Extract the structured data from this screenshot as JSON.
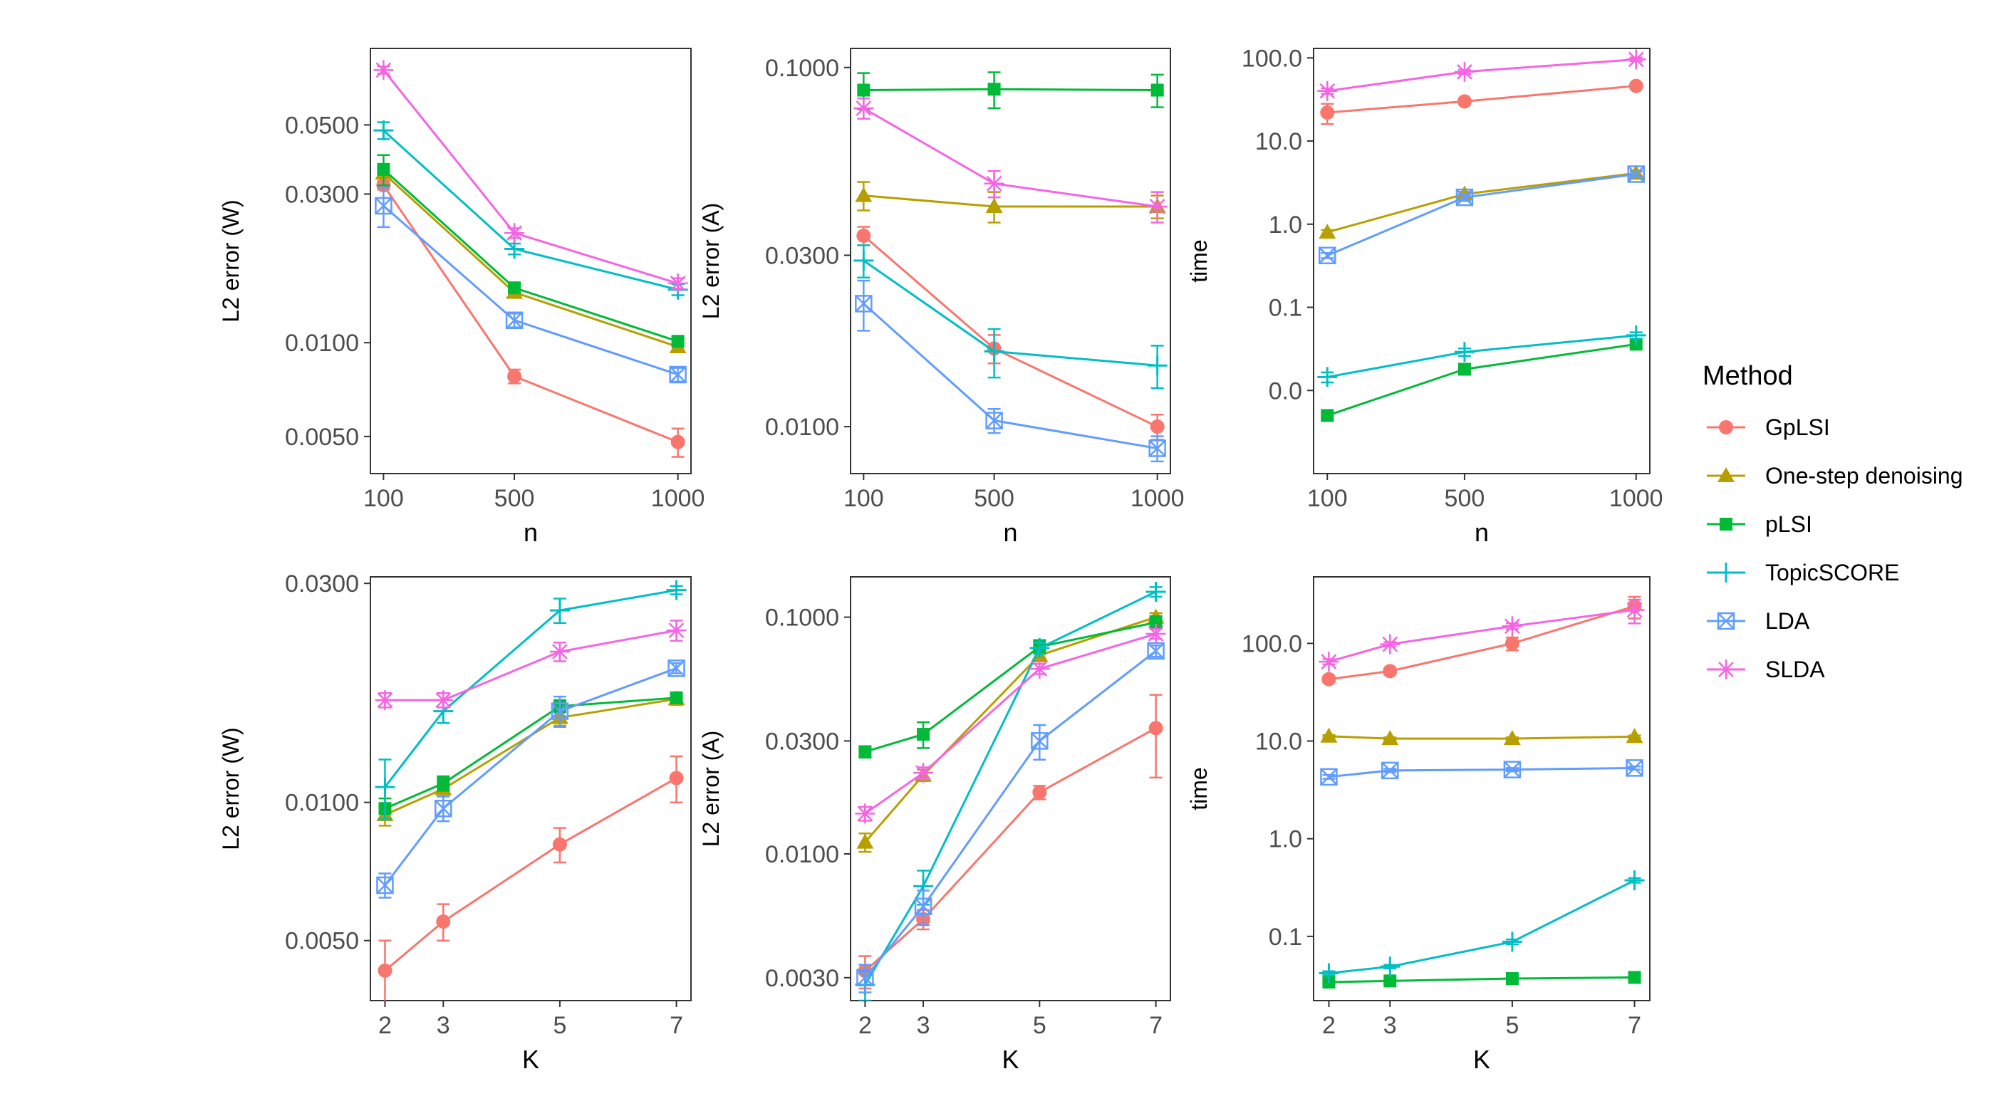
{
  "colors": {
    "GpLSI": "#F8766D",
    "One-step denoising": "#B79F00",
    "pLSI": "#00BA38",
    "TopicSCORE": "#00BFC4",
    "LDA": "#619CFF",
    "SLDA": "#F564E3"
  },
  "legend": {
    "title": "Method",
    "items": [
      {
        "label": "GpLSI",
        "color": "#F8766D",
        "shape": "circle"
      },
      {
        "label": "One-step denoising",
        "color": "#B79F00",
        "shape": "triangle"
      },
      {
        "label": "pLSI",
        "color": "#00BA38",
        "shape": "square"
      },
      {
        "label": "TopicSCORE",
        "color": "#00BFC4",
        "shape": "plus"
      },
      {
        "label": "LDA",
        "color": "#619CFF",
        "shape": "boxcross"
      },
      {
        "label": "SLDA",
        "color": "#F564E3",
        "shape": "star"
      }
    ]
  },
  "chart_data": [
    {
      "type": "line",
      "panel": "top-left",
      "xlabel": "n",
      "ylabel": "L2 error (W)",
      "yscale": "log10",
      "ylim": [
        0.0038,
        0.088
      ],
      "x": [
        100,
        500,
        1000
      ],
      "xlim": [
        60,
        1040
      ],
      "xticks": [
        100,
        500,
        1000
      ],
      "xtick_labels": [
        "100",
        "500",
        "1000"
      ],
      "yticks": [
        0.005,
        0.01,
        0.03,
        0.05
      ],
      "ytick_labels": [
        "0.0050",
        "0.0100",
        "0.0300",
        "0.0500"
      ],
      "series": [
        {
          "name": "GpLSI",
          "values": [
            0.032,
            0.0078,
            0.0048
          ],
          "err": [
            0.001,
            0.0004,
            0.0005
          ]
        },
        {
          "name": "One-step denoising",
          "values": [
            0.035,
            0.0145,
            0.0097
          ],
          "err": [
            0.001,
            0.0005,
            0.0003
          ]
        },
        {
          "name": "pLSI",
          "values": [
            0.036,
            0.015,
            0.0101
          ],
          "err": [
            0.004,
            0.0006,
            0.0003
          ]
        },
        {
          "name": "TopicSCORE",
          "values": [
            0.048,
            0.02,
            0.0148
          ],
          "err": [
            0.003,
            0.0008,
            0.0006
          ]
        },
        {
          "name": "LDA",
          "values": [
            0.0275,
            0.0118,
            0.0079
          ],
          "err": [
            0.004,
            0.0006,
            0.0004
          ]
        },
        {
          "name": "SLDA",
          "values": [
            0.075,
            0.0225,
            0.0155
          ],
          "err": [
            0.002,
            0.0008,
            0.0006
          ]
        }
      ]
    },
    {
      "type": "line",
      "panel": "top-center",
      "xlabel": "n",
      "ylabel": "L2 error (A)",
      "yscale": "log10",
      "ylim": [
        0.0074,
        0.113
      ],
      "x": [
        100,
        500,
        1000
      ],
      "xlim": [
        60,
        1040
      ],
      "xticks": [
        100,
        500,
        1000
      ],
      "xtick_labels": [
        "100",
        "500",
        "1000"
      ],
      "yticks": [
        0.01,
        0.03,
        0.1
      ],
      "ytick_labels": [
        "0.0100",
        "0.0300",
        "0.1000"
      ],
      "series": [
        {
          "name": "GpLSI",
          "values": [
            0.034,
            0.0165,
            0.01
          ],
          "err": [
            0.002,
            0.0015,
            0.0008
          ]
        },
        {
          "name": "One-step denoising",
          "values": [
            0.044,
            0.041,
            0.041
          ],
          "err": [
            0.004,
            0.004,
            0.003
          ]
        },
        {
          "name": "pLSI",
          "values": [
            0.0865,
            0.087,
            0.0865
          ],
          "err": [
            0.01,
            0.01,
            0.009
          ]
        },
        {
          "name": "TopicSCORE",
          "values": [
            0.029,
            0.0162,
            0.0148
          ],
          "err": [
            0.003,
            0.0025,
            0.002
          ]
        },
        {
          "name": "LDA",
          "values": [
            0.022,
            0.0104,
            0.0087
          ],
          "err": [
            0.0035,
            0.0008,
            0.0007
          ]
        },
        {
          "name": "SLDA",
          "values": [
            0.077,
            0.0475,
            0.041
          ],
          "err": [
            0.005,
            0.004,
            0.004
          ]
        }
      ]
    },
    {
      "type": "line",
      "panel": "top-right",
      "xlabel": "n",
      "ylabel": "time",
      "yscale": "log10",
      "ylim": [
        0.001,
        130
      ],
      "x": [
        100,
        500,
        1000
      ],
      "xlim": [
        60,
        1040
      ],
      "xticks": [
        100,
        500,
        1000
      ],
      "xtick_labels": [
        "100",
        "500",
        "1000"
      ],
      "yticks": [
        0.01,
        0.1,
        1,
        10,
        100
      ],
      "ytick_labels": [
        "0.0",
        "0.1",
        "1.0",
        "10.0",
        "100.0"
      ],
      "series": [
        {
          "name": "GpLSI",
          "values": [
            22,
            30,
            46
          ],
          "err": [
            6,
            2,
            3
          ]
        },
        {
          "name": "One-step denoising",
          "values": [
            0.8,
            2.3,
            4.1
          ],
          "err": [
            0.05,
            0.15,
            0.3
          ]
        },
        {
          "name": "pLSI",
          "values": [
            0.005,
            0.018,
            0.036
          ],
          "err": [
            0.0005,
            0.002,
            0.003
          ]
        },
        {
          "name": "TopicSCORE",
          "values": [
            0.0145,
            0.029,
            0.046
          ],
          "err": [
            0.002,
            0.003,
            0.004
          ]
        },
        {
          "name": "LDA",
          "values": [
            0.42,
            2.1,
            4.0
          ],
          "err": [
            0.03,
            0.2,
            0.3
          ]
        },
        {
          "name": "SLDA",
          "values": [
            40,
            68,
            96
          ],
          "err": [
            3,
            4,
            5
          ]
        }
      ]
    },
    {
      "type": "line",
      "panel": "bottom-left",
      "xlabel": "K",
      "ylabel": "L2 error (W)",
      "yscale": "log10",
      "ylim": [
        0.0037,
        0.031
      ],
      "x": [
        2,
        3,
        5,
        7
      ],
      "xlim": [
        1.75,
        7.25
      ],
      "xticks": [
        2,
        3,
        5,
        7
      ],
      "xtick_labels": [
        "2",
        "3",
        "5",
        "7"
      ],
      "yticks": [
        0.005,
        0.01,
        0.03
      ],
      "ytick_labels": [
        "0.0050",
        "0.0100",
        "0.0300"
      ],
      "series": [
        {
          "name": "GpLSI",
          "values": [
            0.0043,
            0.0055,
            0.0081,
            0.0113
          ],
          "err": [
            0.0007,
            0.0005,
            0.0007,
            0.0013
          ]
        },
        {
          "name": "One-step denoising",
          "values": [
            0.0094,
            0.0107,
            0.0153,
            0.0168
          ],
          "err": [
            0.0005,
            0.0004,
            0.0006,
            0.0005
          ]
        },
        {
          "name": "pLSI",
          "values": [
            0.0097,
            0.011,
            0.0162,
            0.0169
          ],
          "err": [
            0.0005,
            0.0004,
            0.0005,
            0.0004
          ]
        },
        {
          "name": "TopicSCORE",
          "values": [
            0.0108,
            0.0158,
            0.0262,
            0.029
          ],
          "err": [
            0.0016,
            0.0009,
            0.0016,
            0.0006
          ]
        },
        {
          "name": "LDA",
          "values": [
            0.0066,
            0.0097,
            0.0158,
            0.0196
          ],
          "err": [
            0.0004,
            0.0006,
            0.0012,
            0.0005
          ]
        },
        {
          "name": "SLDA",
          "values": [
            0.0167,
            0.0167,
            0.0213,
            0.0237
          ],
          "err": [
            0.0006,
            0.0006,
            0.001,
            0.0012
          ]
        }
      ]
    },
    {
      "type": "line",
      "panel": "bottom-center",
      "xlabel": "K",
      "ylabel": "L2 error (A)",
      "yscale": "log10",
      "ylim": [
        0.0024,
        0.148
      ],
      "x": [
        2,
        3,
        5,
        7
      ],
      "xlim": [
        1.75,
        7.25
      ],
      "xticks": [
        2,
        3,
        5,
        7
      ],
      "xtick_labels": [
        "2",
        "3",
        "5",
        "7"
      ],
      "yticks": [
        0.003,
        0.01,
        0.03,
        0.1
      ],
      "ytick_labels": [
        "0.0030",
        "0.0100",
        "0.0300",
        "0.1000"
      ],
      "series": [
        {
          "name": "GpLSI",
          "values": [
            0.0032,
            0.0053,
            0.0182,
            0.034
          ],
          "err": [
            0.0005,
            0.0005,
            0.0012,
            0.013
          ]
        },
        {
          "name": "One-step denoising",
          "values": [
            0.0112,
            0.0215,
            0.069,
            0.1
          ],
          "err": [
            0.001,
            0.0012,
            0.004,
            0.004
          ]
        },
        {
          "name": "pLSI",
          "values": [
            0.027,
            0.032,
            0.075,
            0.095
          ],
          "err": [
            0.0015,
            0.004,
            0.005,
            0.006
          ]
        },
        {
          "name": "TopicSCORE",
          "values": [
            0.0028,
            0.0073,
            0.074,
            0.128
          ],
          "err": [
            0.0004,
            0.0012,
            0.004,
            0.006
          ]
        },
        {
          "name": "LDA",
          "values": [
            0.003,
            0.006,
            0.03,
            0.072
          ],
          "err": [
            0.0004,
            0.001,
            0.005,
            0.004
          ]
        },
        {
          "name": "SLDA",
          "values": [
            0.0148,
            0.022,
            0.0605,
            0.085
          ],
          "err": [
            0.001,
            0.0012,
            0.003,
            0.004
          ]
        }
      ]
    },
    {
      "type": "line",
      "panel": "bottom-right",
      "xlabel": "K",
      "ylabel": "time",
      "yscale": "log10",
      "ylim": [
        0.022,
        480
      ],
      "x": [
        2,
        3,
        5,
        7
      ],
      "xlim": [
        1.75,
        7.25
      ],
      "xticks": [
        2,
        3,
        5,
        7
      ],
      "xtick_labels": [
        "2",
        "3",
        "5",
        "7"
      ],
      "yticks": [
        0.1,
        1,
        10,
        100
      ],
      "ytick_labels": [
        "0.1",
        "1.0",
        "10.0",
        "100.0"
      ],
      "series": [
        {
          "name": "GpLSI",
          "values": [
            43,
            52,
            100,
            240
          ],
          "err": [
            3,
            4,
            15,
            60
          ]
        },
        {
          "name": "One-step denoising",
          "values": [
            11.2,
            10.6,
            10.6,
            11.1
          ],
          "err": [
            0.3,
            0.3,
            0.3,
            0.3
          ]
        },
        {
          "name": "pLSI",
          "values": [
            0.034,
            0.035,
            0.037,
            0.038
          ],
          "err": [
            0.001,
            0.001,
            0.001,
            0.001
          ]
        },
        {
          "name": "TopicSCORE",
          "values": [
            0.042,
            0.049,
            0.088,
            0.375
          ],
          "err": [
            0.002,
            0.002,
            0.005,
            0.02
          ]
        },
        {
          "name": "LDA",
          "values": [
            4.3,
            5.0,
            5.1,
            5.3
          ],
          "err": [
            0.2,
            0.2,
            0.2,
            0.2
          ]
        },
        {
          "name": "SLDA",
          "values": [
            65,
            98,
            150,
            220
          ],
          "err": [
            4,
            5,
            10,
            60
          ]
        }
      ]
    }
  ]
}
